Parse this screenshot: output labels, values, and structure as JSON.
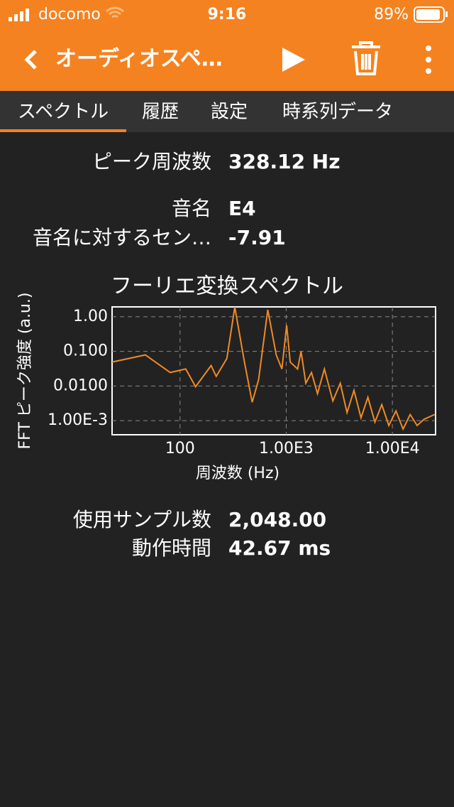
{
  "status_bar": {
    "carrier": "docomo",
    "time": "9:16",
    "battery": "89%"
  },
  "nav": {
    "title": "オーディオスペ…"
  },
  "tabs": [
    "スペクトル",
    "履歴",
    "設定",
    "時系列データ"
  ],
  "stats": [
    {
      "label": "ピーク周波数",
      "value": "328.12 Hz"
    },
    {
      "label": "音名",
      "value": "E4"
    },
    {
      "label": "音名に対するセン…",
      "value": "-7.91"
    },
    {
      "label": "使用サンプル数",
      "value": "2,048.00"
    },
    {
      "label": "動作時間",
      "value": "42.67 ms"
    }
  ],
  "chart_data": {
    "type": "line",
    "title": "フーリエ変換スペクトル",
    "x_label": "周波数 (Hz)",
    "y_label": "FFT ピーク強度 (a.u.)",
    "color": "#f08a24",
    "log_x": true,
    "log_y": true,
    "grid": true,
    "xlim": [
      22.9,
      25500
    ],
    "ylim": [
      0.00039,
      1.93
    ],
    "xticks": [
      100,
      {
        "value": 1000,
        "label": "1.00E3"
      },
      {
        "value": 10000,
        "label": "1.00E4"
      }
    ],
    "yticks": [
      {
        "value": 1,
        "label": "1.00"
      },
      {
        "value": 0.1,
        "label": "0.100"
      },
      {
        "value": 0.01,
        "label": "0.0100"
      },
      {
        "value": 0.001,
        "label": "1.00E-3"
      }
    ],
    "x": [
      22.9,
      47.1,
      80.8,
      113,
      140,
      196,
      219,
      276,
      328,
      404,
      478,
      549,
      671,
      805,
      910,
      1010,
      1090,
      1280,
      1380,
      1530,
      1730,
      1970,
      2290,
      2750,
      3230,
      3740,
      4350,
      5060,
      5880,
      6840,
      7950,
      9250,
      10800,
      12600,
      14700,
      17100,
      19900,
      25000
    ],
    "values": [
      0.049,
      0.079,
      0.0245,
      0.031,
      0.0095,
      0.039,
      0.019,
      0.062,
      1.9,
      0.049,
      0.0034,
      0.015,
      1.6,
      0.079,
      0.031,
      0.57,
      0.049,
      0.031,
      0.1,
      0.012,
      0.0245,
      0.006,
      0.031,
      0.0037,
      0.012,
      0.0017,
      0.0075,
      0.0012,
      0.0047,
      0.00091,
      0.0029,
      0.00072,
      0.0019,
      0.00057,
      0.0015,
      0.00072,
      0.0011,
      0.0015
    ]
  }
}
